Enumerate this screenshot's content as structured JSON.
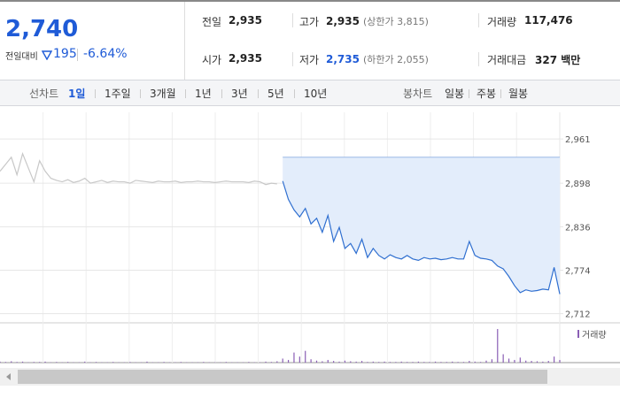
{
  "header": {
    "price": "2,740",
    "change_label": "전일대비",
    "change": "195",
    "change_rate": "-6.64%"
  },
  "stats": [
    {
      "label": "전일",
      "value": "2,935"
    },
    {
      "label": "고가",
      "value": "2,935",
      "note": "(상한가 3,815)"
    },
    {
      "label": "거래량",
      "value": "117,476"
    },
    {
      "label": "시가",
      "value": "2,935"
    },
    {
      "label": "저가",
      "value": "2,735",
      "note": "(하한가 2,055)"
    },
    {
      "label": "거래대금",
      "value": "327 백만"
    }
  ],
  "tabs": {
    "line_label": "선차트",
    "line_tabs": [
      "1일",
      "1주일",
      "3개월",
      "1년",
      "3년",
      "5년",
      "10년"
    ],
    "active_line_tab": 0,
    "candle_label": "봉차트",
    "candle_tabs": [
      "일봉",
      "주봉",
      "월봉"
    ]
  },
  "chart_data": {
    "type": "line",
    "ylim": [
      2699,
      2999
    ],
    "yticks": [
      {
        "value": 2961,
        "label": "2,961"
      },
      {
        "value": 2898,
        "label": "2,898"
      },
      {
        "value": 2836,
        "label": "2,836"
      },
      {
        "value": 2774,
        "label": "2,774"
      },
      {
        "value": 2712,
        "label": "2,712"
      }
    ],
    "grid": true,
    "reference_line": 2935,
    "series": [
      {
        "color": "#c8c8c8",
        "values": [
          2915,
          2925,
          2935,
          2910,
          2940,
          2920,
          2900,
          2930,
          2915,
          2905,
          2902,
          2900,
          2903,
          2899,
          2901,
          2905,
          2898,
          2900,
          2902,
          2899,
          2901,
          2900,
          2900,
          2898,
          2902,
          2901,
          2900,
          2899,
          2901,
          2900,
          2900,
          2901,
          2899,
          2900,
          2900,
          2901,
          2900,
          2900,
          2899,
          2900,
          2901,
          2900,
          2900,
          2900,
          2899,
          2901,
          2900,
          2896,
          2898,
          2897,
          null,
          null,
          null,
          null,
          null,
          null,
          null,
          null,
          null,
          null,
          null,
          null,
          null,
          null,
          null,
          null,
          null,
          null,
          null,
          null,
          null,
          null,
          null,
          null,
          null,
          null,
          null,
          null,
          null,
          null,
          null,
          null,
          null,
          null,
          null,
          null,
          null,
          null,
          null,
          null,
          null,
          null,
          null,
          null,
          null,
          null,
          null,
          null,
          null,
          null
        ]
      },
      {
        "color": "#2f6fd0",
        "fill": "#e3edfb",
        "values": [
          null,
          null,
          null,
          null,
          null,
          null,
          null,
          null,
          null,
          null,
          null,
          null,
          null,
          null,
          null,
          null,
          null,
          null,
          null,
          null,
          null,
          null,
          null,
          null,
          null,
          null,
          null,
          null,
          null,
          null,
          null,
          null,
          null,
          null,
          null,
          null,
          null,
          null,
          null,
          null,
          null,
          null,
          null,
          null,
          null,
          null,
          null,
          null,
          null,
          null,
          2901,
          2875,
          2860,
          2850,
          2862,
          2840,
          2848,
          2828,
          2852,
          2815,
          2835,
          2805,
          2812,
          2798,
          2818,
          2792,
          2805,
          2795,
          2790,
          2796,
          2792,
          2790,
          2795,
          2790,
          2788,
          2792,
          2790,
          2791,
          2789,
          2790,
          2792,
          2790,
          2790,
          2815,
          2795,
          2791,
          2790,
          2788,
          2780,
          2776,
          2765,
          2752,
          2742,
          2746,
          2744,
          2745,
          2747,
          2746,
          2778,
          2740
        ]
      }
    ],
    "volume": {
      "name": "거래량",
      "color": "#8a5fb5",
      "y2lim": [
        0,
        100
      ],
      "values": [
        3,
        2,
        4,
        2,
        3,
        1,
        2,
        2,
        3,
        1,
        2,
        1,
        2,
        1,
        1,
        3,
        1,
        2,
        1,
        1,
        2,
        1,
        1,
        2,
        1,
        1,
        3,
        1,
        1,
        2,
        1,
        1,
        2,
        1,
        1,
        1,
        2,
        1,
        1,
        1,
        2,
        1,
        1,
        1,
        2,
        1,
        1,
        3,
        2,
        4,
        12,
        8,
        30,
        18,
        35,
        10,
        6,
        4,
        8,
        5,
        3,
        6,
        4,
        3,
        5,
        2,
        3,
        2,
        3,
        2,
        2,
        3,
        2,
        2,
        3,
        2,
        2,
        3,
        2,
        2,
        3,
        2,
        2,
        5,
        3,
        2,
        6,
        10,
        100,
        25,
        12,
        8,
        15,
        6,
        5,
        4,
        3,
        5,
        18,
        8
      ]
    }
  }
}
